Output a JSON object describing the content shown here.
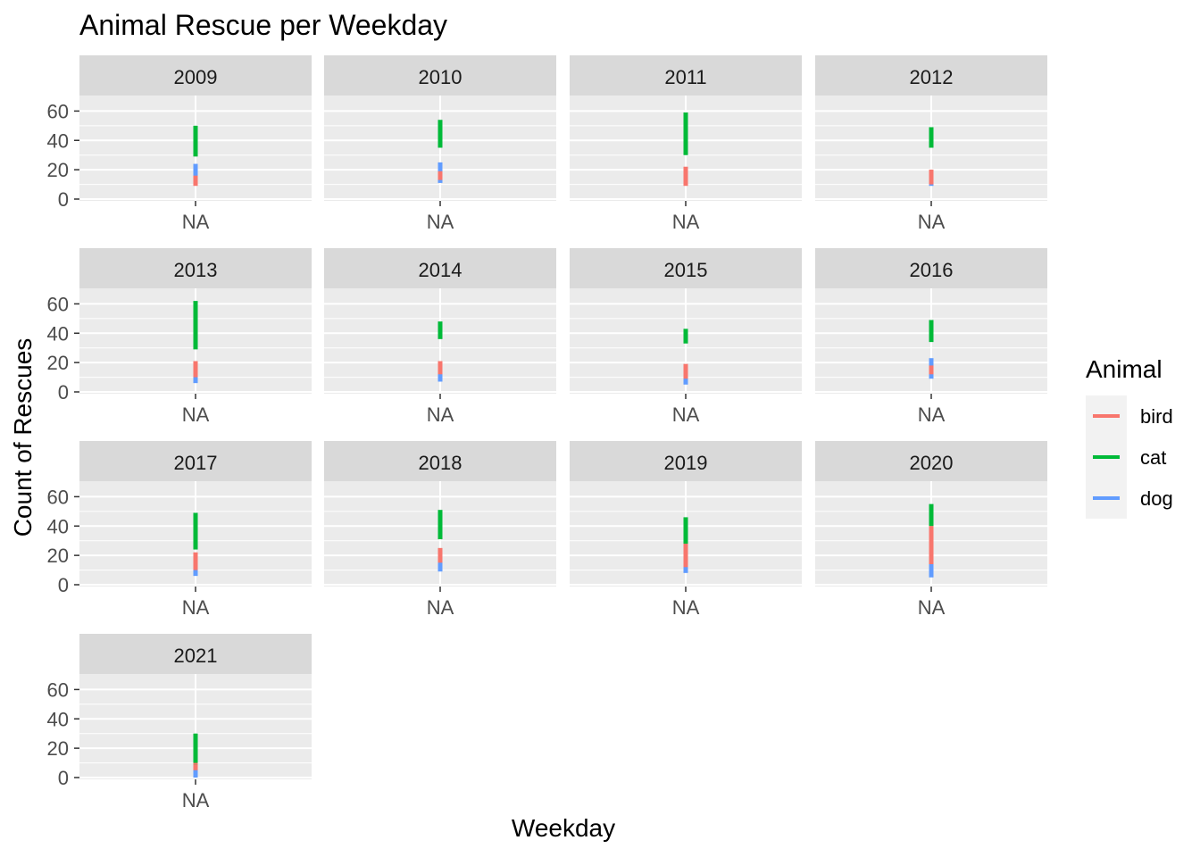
{
  "chart_data": {
    "type": "faceted-range",
    "title": "Animal Rescue per Weekday",
    "xlabel": "Weekday",
    "ylabel": "Count of Rescues",
    "x_category": "NA",
    "ylim": [
      0,
      65
    ],
    "y_ticks": [
      0,
      20,
      40,
      60
    ],
    "grid": true,
    "legend": {
      "title": "Animal",
      "placement": "right"
    },
    "series": [
      {
        "name": "bird",
        "color": "#F8766D"
      },
      {
        "name": "cat",
        "color": "#00BA38"
      },
      {
        "name": "dog",
        "color": "#619CFF"
      }
    ],
    "panels": [
      {
        "year": "2009",
        "ranges": {
          "bird": [
            9,
            16
          ],
          "cat": [
            29,
            50
          ],
          "dog": [
            14,
            24
          ]
        }
      },
      {
        "year": "2010",
        "ranges": {
          "bird": [
            13,
            19
          ],
          "cat": [
            35,
            54
          ],
          "dog": [
            11,
            25
          ]
        }
      },
      {
        "year": "2011",
        "ranges": {
          "bird": [
            9,
            22
          ],
          "cat": [
            30,
            59
          ],
          "dog": [
            10,
            18
          ]
        }
      },
      {
        "year": "2012",
        "ranges": {
          "bird": [
            10,
            20
          ],
          "cat": [
            35,
            49
          ],
          "dog": [
            9,
            18
          ]
        }
      },
      {
        "year": "2013",
        "ranges": {
          "bird": [
            10,
            21
          ],
          "cat": [
            29,
            62
          ],
          "dog": [
            6,
            17
          ]
        }
      },
      {
        "year": "2014",
        "ranges": {
          "bird": [
            12,
            21
          ],
          "cat": [
            36,
            48
          ],
          "dog": [
            7,
            16
          ]
        }
      },
      {
        "year": "2015",
        "ranges": {
          "bird": [
            9,
            19
          ],
          "cat": [
            33,
            43
          ],
          "dog": [
            5,
            17
          ]
        }
      },
      {
        "year": "2016",
        "ranges": {
          "bird": [
            12,
            18
          ],
          "cat": [
            34,
            49
          ],
          "dog": [
            9,
            23
          ]
        }
      },
      {
        "year": "2017",
        "ranges": {
          "bird": [
            10,
            22
          ],
          "cat": [
            24,
            49
          ],
          "dog": [
            6,
            17
          ]
        }
      },
      {
        "year": "2018",
        "ranges": {
          "bird": [
            15,
            25
          ],
          "cat": [
            31,
            51
          ],
          "dog": [
            9,
            18
          ]
        }
      },
      {
        "year": "2019",
        "ranges": {
          "bird": [
            12,
            28
          ],
          "cat": [
            28,
            46
          ],
          "dog": [
            8,
            14
          ]
        }
      },
      {
        "year": "2020",
        "ranges": {
          "bird": [
            23,
            40
          ],
          "cat": [
            40,
            55
          ],
          "dog": [
            5,
            14
          ]
        }
      },
      {
        "year": "2021",
        "ranges": {
          "bird": [
            5,
            10
          ],
          "cat": [
            9,
            30
          ],
          "dog": [
            0,
            9
          ]
        }
      }
    ]
  }
}
